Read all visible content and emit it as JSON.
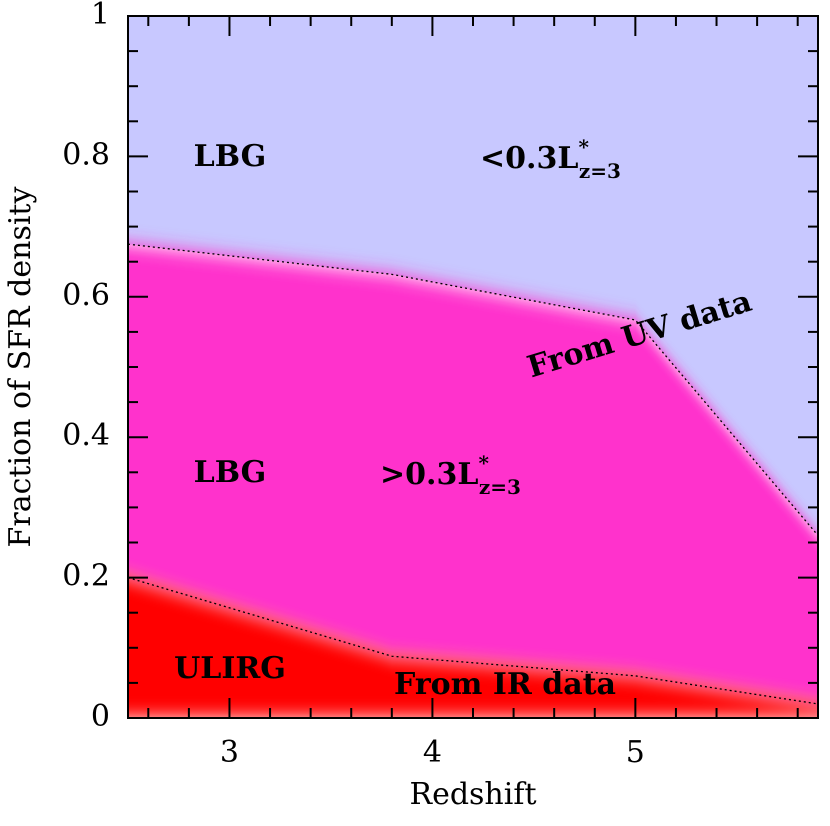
{
  "chart_data": {
    "type": "stacked_area",
    "x_label": "Redshift",
    "y_label": "Fraction of SFR density",
    "x": [
      2.5,
      3.8,
      5,
      5.9
    ],
    "series": [
      {
        "name": "ULIRG",
        "color": "#ff0000",
        "values": [
          0.2,
          0.088,
          0.06,
          0.02
        ]
      },
      {
        "name": "LBG >0.3L*",
        "color": "#ff33cc",
        "values": [
          0.475,
          0.544,
          0.507,
          0.24
        ]
      },
      {
        "name": "LBG <0.3L*",
        "color": "#c8c8ff",
        "values": [
          0.325,
          0.368,
          0.433,
          0.74
        ]
      }
    ],
    "xlim": [
      2.5,
      5.9
    ],
    "ylim": [
      0,
      1
    ],
    "xticks": [
      3,
      4,
      5
    ],
    "yticks": [
      0,
      0.2,
      0.4,
      0.6,
      0.8,
      1
    ],
    "xminorticks": [
      2.6,
      2.8,
      3.2,
      3.4,
      3.6,
      3.8,
      4.2,
      4.4,
      4.6,
      4.8,
      5.2,
      5.4,
      5.6,
      5.8
    ],
    "yminorticks": [
      0.05,
      0.1,
      0.15,
      0.25,
      0.3,
      0.35,
      0.45,
      0.5,
      0.55,
      0.65,
      0.7,
      0.75,
      0.85,
      0.9,
      0.95
    ],
    "annotations": [
      {
        "text": "LBG"
      },
      {
        "text": "<0.3L",
        "sup": "*",
        "sub": "z=3"
      },
      {
        "text": "From UV data"
      },
      {
        "text": "LBG"
      },
      {
        "text": ">0.3L",
        "sup": "*",
        "sub": "z=3"
      },
      {
        "text": "ULIRG"
      },
      {
        "text": "From IR data"
      }
    ]
  }
}
